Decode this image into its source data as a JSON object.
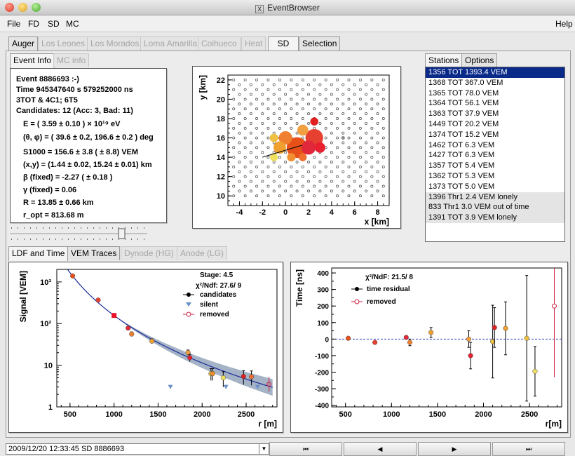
{
  "window": {
    "title": "EventBrowser"
  },
  "menu": {
    "items": [
      "File",
      "FD",
      "SD",
      "MC"
    ],
    "help": "Help"
  },
  "main_tabs": [
    "Auger",
    "Los Leones",
    "Los Morados",
    "Loma Amarilla",
    "Coihueco",
    "Heat",
    "SD",
    "Selection"
  ],
  "info_tabs": [
    "Event Info",
    "MC info"
  ],
  "event_info": {
    "line1": "Event 8886693 :-)",
    "line2": "Time 945347640 s 579252000 ns",
    "line3": "3TOT & 4C1; 6T5",
    "line4": "Candidates: 12 (Acc: 3, Bad: 11)",
    "energy": "E = ( 3.59 ± 0.10 ) × 10¹⁹ eV",
    "angles": "(θ, φ) = ( 39.6 ± 0.2, 196.6 ± 0.2 ) deg",
    "s1000": "S1000 = 156.6 ± 3.8 ( ± 8.8) VEM",
    "core": "(x,y) = (1.44 ± 0.02, 15.24 ± 0.01) km",
    "beta": "β (fixed) = -2.27 ( ± 0.18 )",
    "gamma": "γ (fixed) = 0.06",
    "radius": "R = 13.85 ± 0.66 km",
    "ropt": "r_opt = 813.68 m"
  },
  "side_tabs": [
    "Stations",
    "Options"
  ],
  "stations": [
    "1356 TOT 1393.4 VEM",
    "1368 TOT 367.0 VEM",
    "1365 TOT 78.0 VEM",
    "1364 TOT 56.1 VEM",
    "1363 TOT 37.9 VEM",
    "1449 TOT 20.2 VEM",
    "1374 TOT 15.2 VEM",
    "1462 TOT 6.3 VEM",
    "1427 TOT 6.3 VEM",
    "1357 TOT 5.4 VEM",
    "1362 TOT 5.3 VEM",
    "1373 TOT 5.0 VEM",
    "1396 Thr1 2.4 VEM lonely",
    "833 Thr1 3.0 VEM out of time",
    "1391 TOT 3.9 VEM lonely"
  ],
  "plot_tabs": [
    "LDF and Time",
    "VEM Traces",
    "Dynode (HG)",
    "Anode (LG)"
  ],
  "status": {
    "combo": "2009/12/20 12:33:45  SD 8886693",
    "nav": [
      "⏮",
      "◀",
      "▶",
      "⏭"
    ]
  },
  "colors": {
    "selection": "#0a2a8a",
    "fit_line": "#1a2a9a",
    "band": "#8fa0b8",
    "removed": "#cc2244",
    "silent": "#6a8fc8"
  },
  "chart_data": [
    {
      "type": "scatter",
      "title": "",
      "xlabel": "x [km]",
      "ylabel": "y [km]",
      "xlim": [
        -5,
        9
      ],
      "ylim": [
        9,
        22.5
      ],
      "xticks": [
        -4,
        -2,
        0,
        2,
        4,
        6,
        8
      ],
      "yticks": [
        10,
        12,
        14,
        16,
        18,
        20,
        22
      ],
      "hit_stations": [
        {
          "x": 1.0,
          "y": 15.0,
          "signal": 1393.4,
          "color": "#e8501a"
        },
        {
          "x": 2.5,
          "y": 16.0,
          "signal": 367.0,
          "color": "#e84030"
        },
        {
          "x": 2.0,
          "y": 15.0,
          "signal": 78.0,
          "color": "#e0283a"
        },
        {
          "x": 0.0,
          "y": 16.0,
          "signal": 56.1,
          "color": "#f08030"
        },
        {
          "x": -0.5,
          "y": 15.0,
          "signal": 37.9,
          "color": "#f0a030"
        },
        {
          "x": 1.5,
          "y": 16.8,
          "signal": 20.2,
          "color": "#f0a040"
        },
        {
          "x": 3.0,
          "y": 15.0,
          "signal": 15.2,
          "color": "#e82030"
        },
        {
          "x": -1.0,
          "y": 16.0,
          "signal": 6.3,
          "color": "#f0c040"
        },
        {
          "x": 0.5,
          "y": 14.0,
          "signal": 6.3,
          "color": "#f09030"
        },
        {
          "x": 2.5,
          "y": 17.7,
          "signal": 5.4,
          "color": "#e02020"
        },
        {
          "x": 1.5,
          "y": 14.0,
          "signal": 5.3,
          "color": "#f07030"
        },
        {
          "x": -1.0,
          "y": 14.0,
          "signal": 5.0,
          "color": "#f0e060"
        }
      ],
      "other_markers": [
        {
          "x": 5.0,
          "y": 16.0,
          "color": "#888888"
        }
      ],
      "shower_axis": {
        "from": [
          -2.0,
          14.0
        ],
        "to": [
          1.44,
          15.24
        ]
      }
    },
    {
      "type": "scatter",
      "xlabel": "r [m]",
      "ylabel": "Signal [VEM]",
      "xlim": [
        350,
        2850
      ],
      "ylim": [
        1,
        2000
      ],
      "yscale": "log",
      "xticks": [
        500,
        1000,
        1500,
        2000,
        2500
      ],
      "yticks": [
        1,
        10,
        100,
        1000
      ],
      "annotations": {
        "stage": "Stage: 4.5",
        "chi2": "χ²/Ndf: 27.6/ 9"
      },
      "legend": [
        "candidates",
        "silent",
        "removed"
      ],
      "legend_placement": "top-right",
      "candidates": [
        {
          "r": 530,
          "s": 1393.4,
          "err": 40,
          "color": "#e8501a"
        },
        {
          "r": 820,
          "s": 367.0,
          "err": 20,
          "color": "#e84030"
        },
        {
          "r": 1160,
          "s": 78.0,
          "err": 8,
          "color": "#e0283a"
        },
        {
          "r": 1200,
          "s": 56.1,
          "err": 7,
          "color": "#f08030"
        },
        {
          "r": 1430,
          "s": 37.9,
          "err": 5,
          "color": "#f0a030"
        },
        {
          "r": 1840,
          "s": 20.2,
          "err": 3,
          "color": "#f0a040"
        },
        {
          "r": 1860,
          "s": 15.2,
          "err": 3,
          "color": "#e82030"
        },
        {
          "r": 2100,
          "s": 6.3,
          "err": 2,
          "color": "#f0c040"
        },
        {
          "r": 2120,
          "s": 6.3,
          "err": 2,
          "color": "#f09030"
        },
        {
          "r": 2240,
          "s": 5.0,
          "err": 2,
          "color": "#f0e060"
        },
        {
          "r": 2470,
          "s": 5.4,
          "err": 2,
          "color": "#e02020"
        },
        {
          "r": 2560,
          "s": 5.3,
          "err": 2,
          "color": "#f07030"
        }
      ],
      "s1000_point": {
        "r": 1000,
        "s": 156.6
      },
      "silent": [
        {
          "r": 1640,
          "s": 3.0
        },
        {
          "r": 2270,
          "s": 3.0
        },
        {
          "r": 2630,
          "s": 3.0
        }
      ],
      "removed": [
        {
          "r": 2760,
          "s": 3.5
        }
      ],
      "fit": {
        "r_ref": 1000,
        "s_ref": 156.6,
        "beta": -2.27,
        "r_max": 2800
      }
    },
    {
      "type": "scatter",
      "xlabel": "r[m]",
      "ylabel": "Time [ns]",
      "xlim": [
        350,
        2850
      ],
      "ylim": [
        -410,
        430
      ],
      "xticks": [
        500,
        1000,
        1500,
        2000,
        2500
      ],
      "yticks": [
        -400,
        -300,
        -200,
        -100,
        0,
        100,
        200,
        300,
        400
      ],
      "annotations": {
        "chi2": "χ²/NdF:  21.5/ 8"
      },
      "legend": [
        "time residual",
        "removed"
      ],
      "legend_placement": "top-left",
      "residuals": [
        {
          "r": 530,
          "t": 5,
          "err": 5,
          "color": "#e8501a"
        },
        {
          "r": 820,
          "t": -20,
          "err": 5,
          "color": "#e84030"
        },
        {
          "r": 1160,
          "t": 10,
          "err": 10,
          "color": "#e0283a"
        },
        {
          "r": 1200,
          "t": -20,
          "err": 20,
          "color": "#f08030"
        },
        {
          "r": 1430,
          "t": 40,
          "err": 30,
          "color": "#f0a030"
        },
        {
          "r": 1840,
          "t": 0,
          "err": 50,
          "color": "#f0a040"
        },
        {
          "r": 1860,
          "t": -100,
          "err": 80,
          "color": "#e82030"
        },
        {
          "r": 2100,
          "t": -15,
          "err": 220,
          "color": "#f0c040"
        },
        {
          "r": 2120,
          "t": 70,
          "err": 120,
          "color": "#e02020"
        },
        {
          "r": 2240,
          "t": 65,
          "err": 160,
          "color": "#f0a030"
        },
        {
          "r": 2470,
          "t": 5,
          "err": 380,
          "color": "#f0c040"
        },
        {
          "r": 2560,
          "t": -195,
          "err": 150,
          "color": "#f0e060"
        }
      ],
      "removed": [
        {
          "r": 2770,
          "t": 200,
          "err": 430
        }
      ]
    }
  ]
}
